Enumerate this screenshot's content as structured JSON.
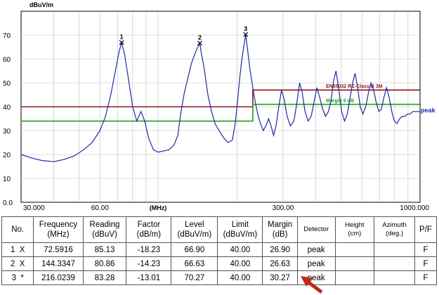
{
  "chart_data": {
    "type": "line",
    "y_unit": "dBuV/m",
    "x_unit": "(MHz)",
    "x_scale": "log",
    "xlim": [
      30,
      1000
    ],
    "ylim": [
      0,
      80
    ],
    "x_tick_labels": [
      "30.000",
      "60.00",
      "(MHz)",
      "300.00",
      "1000.000"
    ],
    "y_tick_labels": [
      "0.0",
      "10",
      "20",
      "30",
      "40",
      "50",
      "60",
      "70"
    ],
    "grid": true,
    "series": [
      {
        "name": "peak",
        "color": "#1f2aa0",
        "points": [
          [
            30,
            20
          ],
          [
            33,
            18.5
          ],
          [
            36,
            17.5
          ],
          [
            40,
            17
          ],
          [
            44,
            18
          ],
          [
            48,
            19.5
          ],
          [
            52,
            22
          ],
          [
            56,
            25
          ],
          [
            60,
            30
          ],
          [
            63,
            36
          ],
          [
            66,
            45
          ],
          [
            69,
            56
          ],
          [
            71,
            63
          ],
          [
            72.59,
            66.9
          ],
          [
            74.5,
            62
          ],
          [
            77,
            52
          ],
          [
            80,
            40
          ],
          [
            83,
            34
          ],
          [
            86,
            38
          ],
          [
            89,
            34
          ],
          [
            92,
            27
          ],
          [
            96,
            22
          ],
          [
            100,
            21
          ],
          [
            105,
            21.5
          ],
          [
            110,
            22
          ],
          [
            115,
            24
          ],
          [
            119,
            28
          ],
          [
            122,
            37
          ],
          [
            126,
            46
          ],
          [
            130,
            52
          ],
          [
            134,
            58
          ],
          [
            138,
            62
          ],
          [
            141,
            64.5
          ],
          [
            144.33,
            66.63
          ],
          [
            146,
            63
          ],
          [
            150,
            56
          ],
          [
            155,
            45
          ],
          [
            160,
            38
          ],
          [
            165,
            33
          ],
          [
            171,
            30
          ],
          [
            178,
            27
          ],
          [
            185,
            25
          ],
          [
            192,
            26
          ],
          [
            197,
            33
          ],
          [
            201,
            42
          ],
          [
            205,
            52
          ],
          [
            209,
            60
          ],
          [
            213,
            66
          ],
          [
            216.02,
            70.27
          ],
          [
            219,
            65
          ],
          [
            224,
            56
          ],
          [
            230,
            48
          ],
          [
            235,
            42
          ],
          [
            240,
            37
          ],
          [
            246,
            33
          ],
          [
            252,
            30
          ],
          [
            258,
            32
          ],
          [
            264,
            35
          ],
          [
            270,
            32
          ],
          [
            276,
            28
          ],
          [
            282,
            32
          ],
          [
            289,
            40
          ],
          [
            296,
            47
          ],
          [
            303,
            43
          ],
          [
            311,
            36
          ],
          [
            320,
            32
          ],
          [
            330,
            34
          ],
          [
            338,
            41
          ],
          [
            347,
            50
          ],
          [
            355,
            46
          ],
          [
            364,
            38
          ],
          [
            374,
            34
          ],
          [
            384,
            36
          ],
          [
            394,
            42
          ],
          [
            404,
            48
          ],
          [
            414,
            44
          ],
          [
            425,
            39
          ],
          [
            436,
            36
          ],
          [
            447,
            38
          ],
          [
            458,
            43
          ],
          [
            468,
            51
          ],
          [
            478,
            55
          ],
          [
            490,
            47
          ],
          [
            502,
            38
          ],
          [
            515,
            34
          ],
          [
            528,
            37
          ],
          [
            541,
            44
          ],
          [
            553,
            50
          ],
          [
            565,
            54
          ],
          [
            578,
            48
          ],
          [
            591,
            40
          ],
          [
            605,
            37
          ],
          [
            620,
            40
          ],
          [
            636,
            46
          ],
          [
            650,
            50
          ],
          [
            665,
            47
          ],
          [
            680,
            42
          ],
          [
            696,
            38
          ],
          [
            712,
            39
          ],
          [
            728,
            44
          ],
          [
            745,
            48
          ],
          [
            762,
            44
          ],
          [
            780,
            38
          ],
          [
            798,
            34
          ],
          [
            817,
            33
          ],
          [
            836,
            35
          ],
          [
            856,
            36
          ],
          [
            876,
            36
          ],
          [
            896,
            37
          ],
          [
            917,
            37
          ],
          [
            938,
            38
          ],
          [
            959,
            38
          ],
          [
            980,
            38
          ],
          [
            1000,
            38
          ]
        ]
      }
    ],
    "limit_lines": [
      {
        "label": "EN55032 RE-Class B 3M",
        "color": "#8b1a1a",
        "segments": [
          [
            30,
            230,
            40
          ],
          [
            230,
            1000,
            47
          ]
        ]
      },
      {
        "label": "Margin 6 dB",
        "color": "#1aa21a",
        "segments": [
          [
            30,
            230,
            34
          ],
          [
            230,
            1000,
            41
          ]
        ]
      }
    ],
    "markers": [
      {
        "label": "1",
        "x": 72.5916,
        "y": 66.9
      },
      {
        "label": "2",
        "x": 144.3347,
        "y": 66.63
      },
      {
        "label": "3",
        "x": 216.0239,
        "y": 70.27
      }
    ]
  },
  "table": {
    "headers": [
      "No.",
      "Frequency\n(MHz)",
      "Reading\n(dBuV)",
      "Factor\n(dB/m)",
      "Level\n(dBuV/m)",
      "Limit\n(dBuV/m)",
      "Margin\n(dB)",
      "Detector",
      "Height\n(cm)",
      "Azimuth\n(deg.)",
      "P/F"
    ],
    "rows": [
      [
        "1",
        "X",
        "72.5916",
        "85.13",
        "-18.23",
        "66.90",
        "40.00",
        "26.90",
        "peak",
        "",
        "",
        "F"
      ],
      [
        "2",
        "X",
        "144.3347",
        "80.86",
        "-14.23",
        "66.63",
        "40.00",
        "26.63",
        "peak",
        "",
        "",
        "F"
      ],
      [
        "3",
        "*",
        "216.0239",
        "83.28",
        "-13.01",
        "70.27",
        "40.00",
        "30.27",
        "peak",
        "",
        "",
        "F"
      ]
    ]
  },
  "colors": {
    "trace": "#1f2aa0",
    "limit": "#8b1a1a",
    "margin": "#1aa21a",
    "arrow": "#c0281c"
  }
}
